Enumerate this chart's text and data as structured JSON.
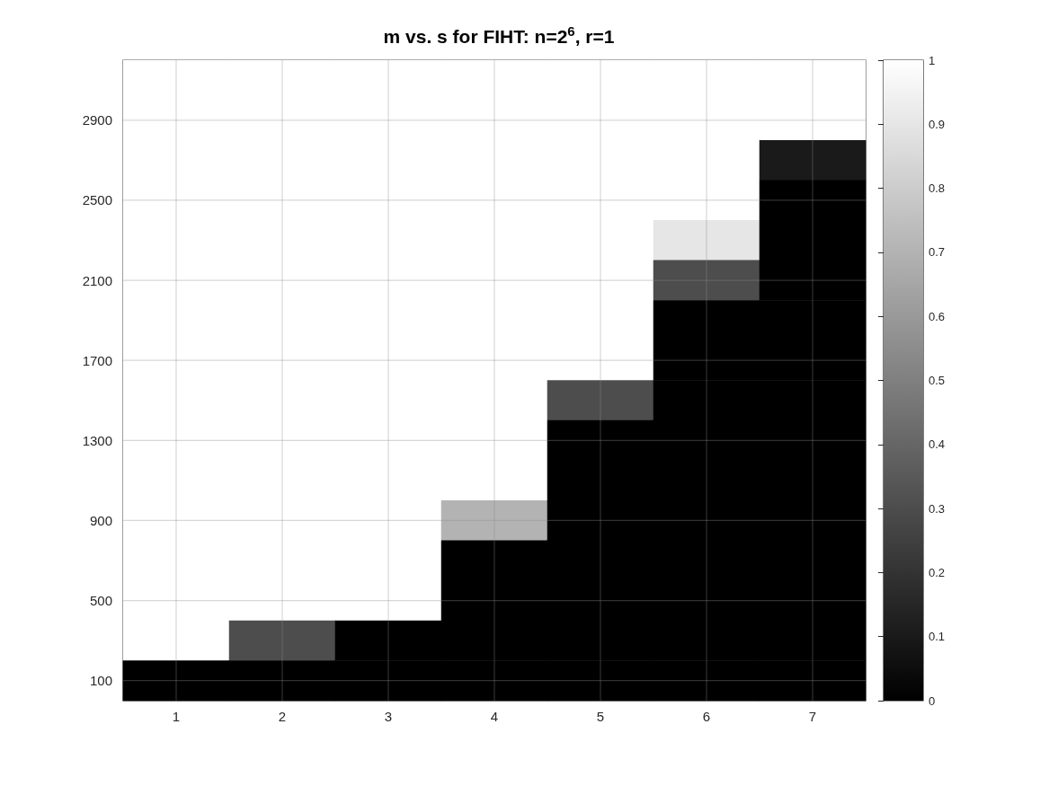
{
  "chart_data": {
    "type": "heatmap",
    "title": "m vs. s for FIHT: n=2$^{6}$, r=1",
    "categories": [
      "1",
      "2",
      "3",
      "4",
      "5",
      "6",
      "7"
    ],
    "y_categories": [
      null,
      "2900",
      null,
      "2500",
      null,
      "2100",
      null,
      "1700",
      null,
      "1300",
      null,
      "900",
      null,
      "500",
      null,
      "100"
    ],
    "cells": [
      [
        1,
        1,
        1,
        1,
        1,
        1,
        1
      ],
      [
        1,
        1,
        1,
        1,
        1,
        1,
        1
      ],
      [
        1,
        1,
        1,
        1,
        1,
        1,
        0.1
      ],
      [
        1,
        1,
        1,
        1,
        1,
        1,
        0
      ],
      [
        1,
        1,
        1,
        1,
        1,
        0.9,
        0
      ],
      [
        1,
        1,
        1,
        1,
        1,
        0.3,
        0
      ],
      [
        1,
        1,
        1,
        1,
        1,
        0,
        0
      ],
      [
        1,
        1,
        1,
        1,
        1,
        0,
        0
      ],
      [
        1,
        1,
        1,
        1,
        0.3,
        0,
        0
      ],
      [
        1,
        1,
        1,
        1,
        0,
        0,
        0
      ],
      [
        1,
        1,
        1,
        1,
        0,
        0,
        0
      ],
      [
        1,
        1,
        1,
        0.7,
        0,
        0,
        0
      ],
      [
        1,
        1,
        1,
        0,
        0,
        0,
        0
      ],
      [
        1,
        1,
        1,
        0,
        0,
        0,
        0
      ],
      [
        1,
        0.3,
        0,
        0,
        0,
        0,
        0
      ],
      [
        0,
        0,
        0,
        0,
        0,
        0,
        0
      ]
    ],
    "clim": [
      0,
      1
    ],
    "cticks": [
      0,
      0.1,
      0.2,
      0.3,
      0.4,
      0.5,
      0.6,
      0.7,
      0.8,
      0.9,
      1
    ],
    "grid": true
  }
}
